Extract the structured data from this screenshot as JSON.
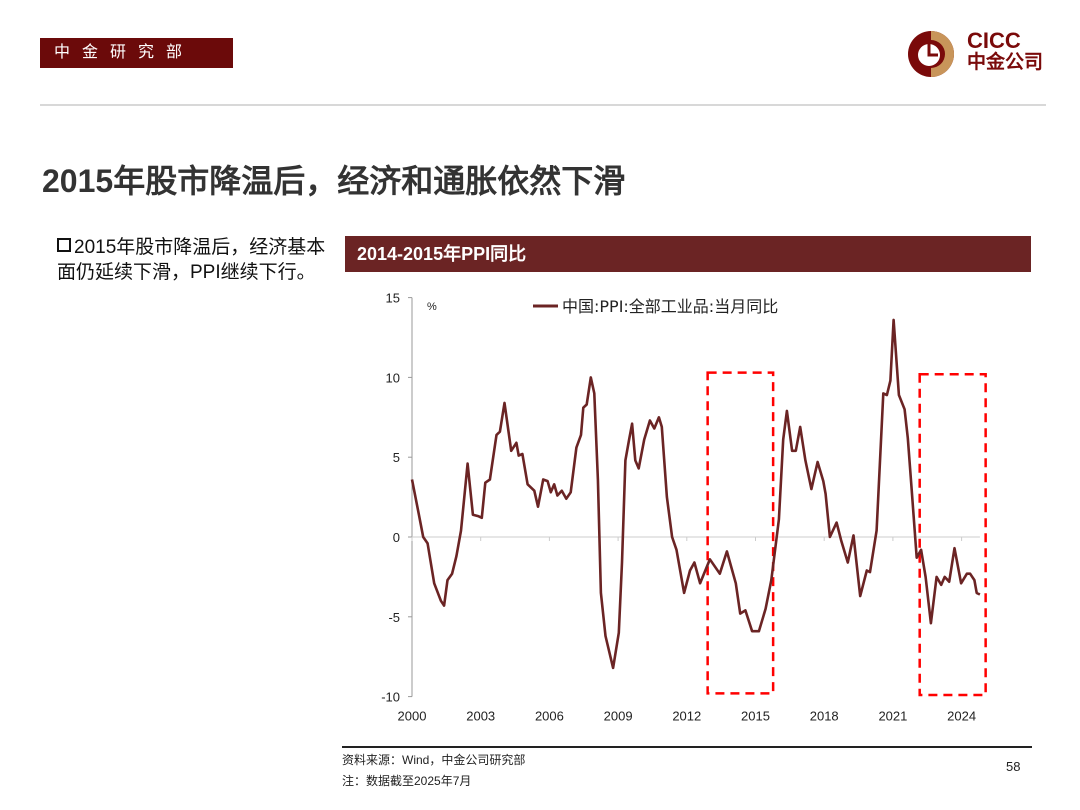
{
  "header": {
    "department": "中金研究部",
    "logo_en": "CICC",
    "logo_cn": "中金公司",
    "brand_color": "#6b0a0a",
    "logo_gold": "#c8955a"
  },
  "slide": {
    "title": "2015年股市降温后，经济和通胀依然下滑",
    "bullet": "2015年股市降温后，经济基本面仍延续下滑，PPI继续下行。",
    "chart_header": "2014-2015年PPI同比"
  },
  "footer": {
    "source": "资料来源：Wind，中金公司研究部",
    "note": "注：数据截至2025年7月",
    "page_number": "58"
  },
  "chart_data": {
    "type": "line",
    "title": "",
    "ylabel": "%",
    "xlabel": "",
    "ylim": [
      -10,
      15
    ],
    "xlim": [
      2000,
      2025
    ],
    "yticks": [
      "15",
      "10",
      "5",
      "0",
      "-5",
      "-10"
    ],
    "ytick_values": [
      15,
      10,
      5,
      0,
      -5,
      -10
    ],
    "xticks": [
      "2000",
      "2003",
      "2006",
      "2009",
      "2012",
      "2015",
      "2018",
      "2021",
      "2024"
    ],
    "xtick_values": [
      2000,
      2003,
      2006,
      2009,
      2012,
      2015,
      2018,
      2021,
      2024
    ],
    "legend": "top-center",
    "grid": false,
    "series": [
      {
        "name": "中国:PPI:全部工业品:当月同比",
        "color": "#6b2424",
        "points": [
          [
            2000.0,
            3.6
          ],
          [
            2000.29,
            1.5
          ],
          [
            2000.49,
            0.0
          ],
          [
            2000.68,
            -0.4
          ],
          [
            2000.97,
            -2.9
          ],
          [
            2001.26,
            -4.0
          ],
          [
            2001.4,
            -4.3
          ],
          [
            2001.55,
            -2.7
          ],
          [
            2001.75,
            -2.3
          ],
          [
            2001.94,
            -1.2
          ],
          [
            2002.14,
            0.4
          ],
          [
            2002.43,
            4.6
          ],
          [
            2002.66,
            1.4
          ],
          [
            2002.91,
            1.3
          ],
          [
            2003.05,
            1.2
          ],
          [
            2003.2,
            3.4
          ],
          [
            2003.4,
            3.6
          ],
          [
            2003.69,
            6.4
          ],
          [
            2003.84,
            6.6
          ],
          [
            2004.04,
            8.4
          ],
          [
            2004.33,
            5.4
          ],
          [
            2004.56,
            5.9
          ],
          [
            2004.66,
            5.1
          ],
          [
            2004.82,
            5.2
          ],
          [
            2005.05,
            3.3
          ],
          [
            2005.34,
            2.9
          ],
          [
            2005.5,
            1.9
          ],
          [
            2005.73,
            3.6
          ],
          [
            2005.92,
            3.5
          ],
          [
            2006.06,
            2.8
          ],
          [
            2006.21,
            3.3
          ],
          [
            2006.35,
            2.6
          ],
          [
            2006.54,
            2.9
          ],
          [
            2006.74,
            2.4
          ],
          [
            2006.93,
            2.8
          ],
          [
            2007.18,
            5.6
          ],
          [
            2007.38,
            6.4
          ],
          [
            2007.48,
            8.1
          ],
          [
            2007.63,
            8.3
          ],
          [
            2007.81,
            10.0
          ],
          [
            2007.96,
            9.0
          ],
          [
            2008.12,
            3.6
          ],
          [
            2008.25,
            -3.5
          ],
          [
            2008.45,
            -6.2
          ],
          [
            2008.78,
            -8.2
          ],
          [
            2009.03,
            -6.0
          ],
          [
            2009.17,
            -1.6
          ],
          [
            2009.32,
            4.8
          ],
          [
            2009.48,
            6.1
          ],
          [
            2009.61,
            7.1
          ],
          [
            2009.75,
            4.8
          ],
          [
            2009.9,
            4.3
          ],
          [
            2010.14,
            6.1
          ],
          [
            2010.39,
            7.3
          ],
          [
            2010.58,
            6.8
          ],
          [
            2010.78,
            7.5
          ],
          [
            2010.91,
            6.9
          ],
          [
            2011.13,
            2.5
          ],
          [
            2011.36,
            0.0
          ],
          [
            2011.55,
            -0.8
          ],
          [
            2011.88,
            -3.5
          ],
          [
            2012.14,
            -2.1
          ],
          [
            2012.33,
            -1.6
          ],
          [
            2012.58,
            -2.9
          ],
          [
            2013.01,
            -1.4
          ],
          [
            2013.44,
            -2.3
          ],
          [
            2013.75,
            -0.9
          ],
          [
            2014.14,
            -2.9
          ],
          [
            2014.33,
            -4.8
          ],
          [
            2014.56,
            -4.6
          ],
          [
            2014.85,
            -5.9
          ],
          [
            2015.15,
            -5.9
          ],
          [
            2015.44,
            -4.5
          ],
          [
            2015.69,
            -2.7
          ],
          [
            2016.02,
            1.1
          ],
          [
            2016.21,
            6.1
          ],
          [
            2016.37,
            7.9
          ],
          [
            2016.6,
            5.4
          ],
          [
            2016.76,
            5.4
          ],
          [
            2016.95,
            6.9
          ],
          [
            2017.18,
            4.8
          ],
          [
            2017.44,
            3.0
          ],
          [
            2017.71,
            4.7
          ],
          [
            2017.96,
            3.5
          ],
          [
            2018.06,
            2.7
          ],
          [
            2018.25,
            0.0
          ],
          [
            2018.54,
            0.9
          ],
          [
            2018.74,
            -0.2
          ],
          [
            2019.03,
            -1.6
          ],
          [
            2019.28,
            0.1
          ],
          [
            2019.57,
            -3.7
          ],
          [
            2019.86,
            -2.1
          ],
          [
            2020.0,
            -2.2
          ],
          [
            2020.29,
            0.4
          ],
          [
            2020.58,
            9.0
          ],
          [
            2020.74,
            8.9
          ],
          [
            2020.89,
            9.8
          ],
          [
            2021.03,
            13.6
          ],
          [
            2021.26,
            8.9
          ],
          [
            2021.51,
            8.0
          ],
          [
            2021.65,
            6.2
          ],
          [
            2021.81,
            3.2
          ],
          [
            2022.04,
            -1.3
          ],
          [
            2022.23,
            -0.8
          ],
          [
            2022.43,
            -2.5
          ],
          [
            2022.66,
            -5.4
          ],
          [
            2022.91,
            -2.5
          ],
          [
            2023.11,
            -3.0
          ],
          [
            2023.26,
            -2.5
          ],
          [
            2023.46,
            -2.8
          ],
          [
            2023.69,
            -0.7
          ],
          [
            2023.98,
            -2.9
          ],
          [
            2024.23,
            -2.3
          ],
          [
            2024.37,
            -2.3
          ],
          [
            2024.56,
            -2.7
          ],
          [
            2024.66,
            -3.5
          ],
          [
            2024.8,
            -3.6
          ]
        ]
      }
    ],
    "annotations": [
      {
        "type": "dashed-box",
        "color": "#ff0000",
        "x_range": [
          2012.91,
          2015.77
        ],
        "y_range": [
          -9.8,
          10.3
        ]
      },
      {
        "type": "dashed-box",
        "color": "#ff0000",
        "x_range": [
          2022.17,
          2025.05
        ],
        "y_range": [
          -9.9,
          10.2
        ]
      }
    ]
  }
}
